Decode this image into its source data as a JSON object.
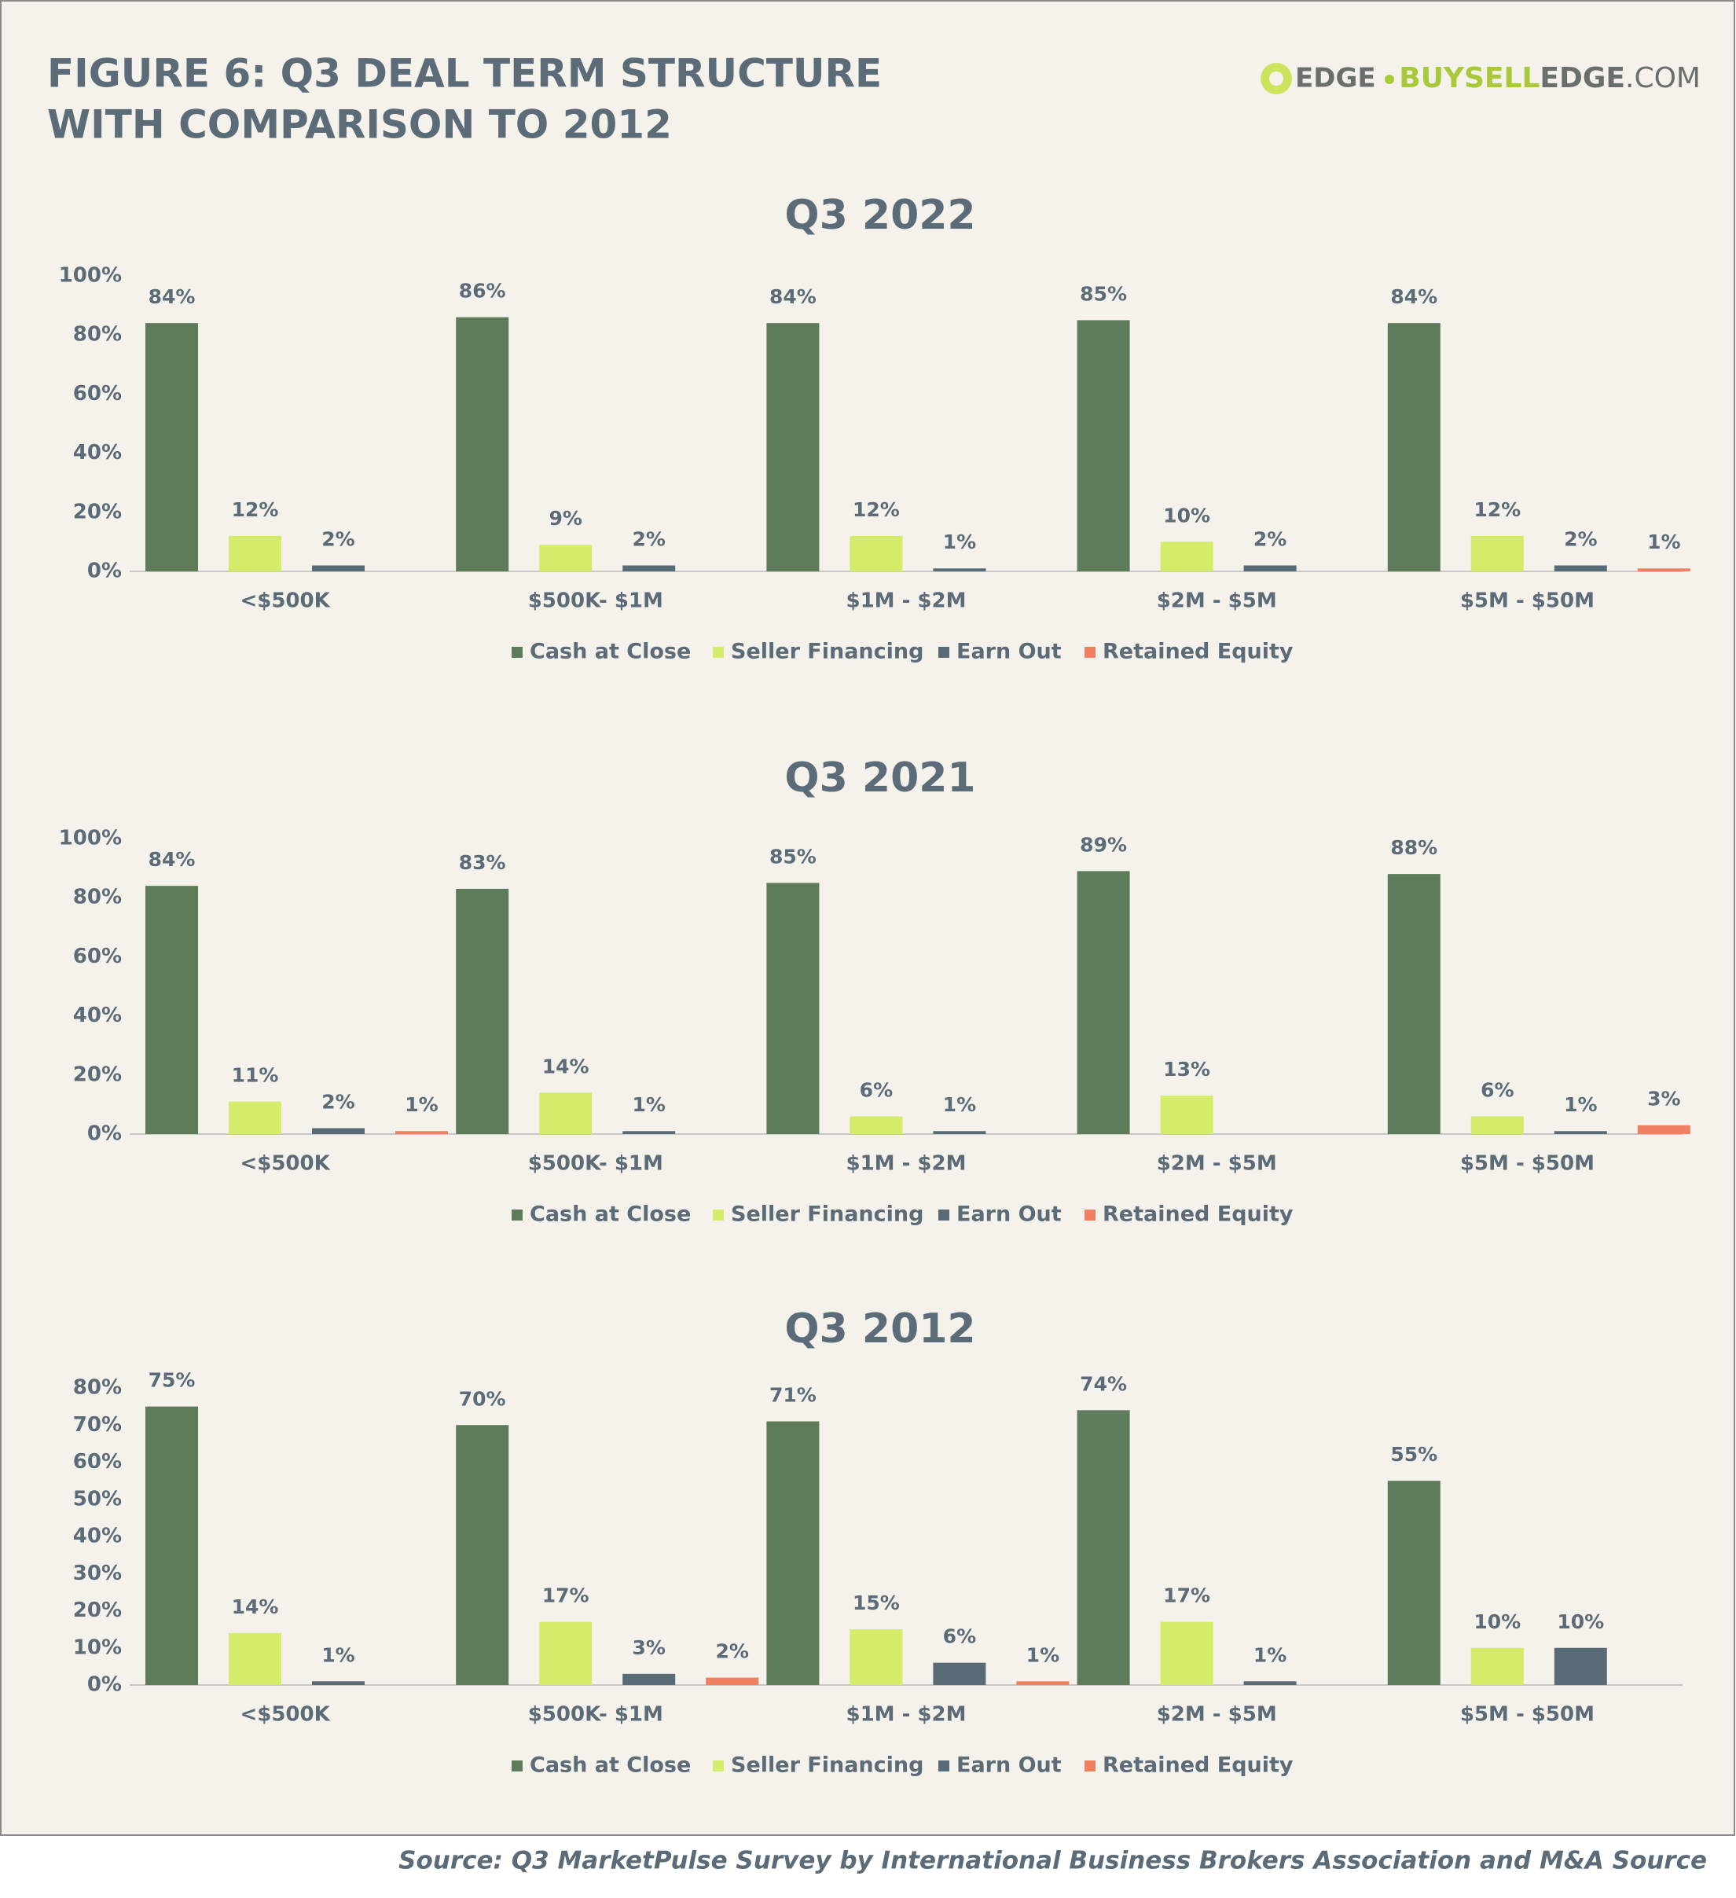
{
  "header": {
    "title_lines": [
      "FIGURE 6: Q3 DEAL TERM STRUCTURE",
      "WITH COMPARISON TO 2012"
    ],
    "logo": "EDGE",
    "site_parts": [
      "BUYSELL",
      "EDGE",
      ".COM"
    ]
  },
  "source": "Source: Q3 MarketPulse Survey by International Business Brokers Association and M&A Source",
  "chart_data": [
    {
      "type": "bar",
      "title": "Q3 2022",
      "categories": [
        "<$500K",
        "$500K- $1M",
        "$1M - $2M",
        "$2M - $5M",
        "$5M - $50M"
      ],
      "ylim": [
        0,
        100
      ],
      "yticks": [
        {
          "value": 0,
          "label": "0%"
        },
        {
          "value": 20,
          "label": "20%"
        },
        {
          "value": 40,
          "label": "40%"
        },
        {
          "value": 60,
          "label": "60%"
        },
        {
          "value": 80,
          "label": "80%"
        },
        {
          "value": 100,
          "label": "100%"
        }
      ],
      "grid": false,
      "legend": "bottom",
      "series": [
        {
          "name": "Cash at Close",
          "color": "#5e7b5a",
          "values": [
            84,
            86,
            84,
            85,
            84
          ],
          "value_labels": [
            "84%",
            "86%",
            "84%",
            "85%",
            "84%"
          ]
        },
        {
          "name": "Seller Financing",
          "color": "#d4ec6a",
          "values": [
            12,
            9,
            12,
            10,
            12
          ],
          "value_labels": [
            "12%",
            "9%",
            "12%",
            "10%",
            "12%"
          ]
        },
        {
          "name": "Earn Out",
          "color": "#5a6b78",
          "values": [
            2,
            2,
            1,
            2,
            2
          ],
          "value_labels": [
            "2%",
            "2%",
            "1%",
            "2%",
            "2%"
          ]
        },
        {
          "name": "Retained Equity",
          "color": "#f08060",
          "values": [
            null,
            null,
            null,
            null,
            1
          ],
          "value_labels": [
            null,
            null,
            null,
            null,
            "1%"
          ]
        }
      ]
    },
    {
      "type": "bar",
      "title": "Q3 2021",
      "categories": [
        "<$500K",
        "$500K- $1M",
        "$1M - $2M",
        "$2M - $5M",
        "$5M - $50M"
      ],
      "ylim": [
        0,
        100
      ],
      "yticks": [
        {
          "value": 0,
          "label": "0%"
        },
        {
          "value": 20,
          "label": "20%"
        },
        {
          "value": 40,
          "label": "40%"
        },
        {
          "value": 60,
          "label": "60%"
        },
        {
          "value": 80,
          "label": "80%"
        },
        {
          "value": 100,
          "label": "100%"
        }
      ],
      "grid": false,
      "legend": "bottom",
      "series": [
        {
          "name": "Cash at Close",
          "color": "#5e7b5a",
          "values": [
            84,
            83,
            85,
            89,
            88
          ],
          "value_labels": [
            "84%",
            "83%",
            "85%",
            "89%",
            "88%"
          ]
        },
        {
          "name": "Seller Financing",
          "color": "#d4ec6a",
          "values": [
            11,
            14,
            6,
            13,
            6
          ],
          "value_labels": [
            "11%",
            "14%",
            "6%",
            "13%",
            "6%"
          ]
        },
        {
          "name": "Earn Out",
          "color": "#5a6b78",
          "values": [
            2,
            1,
            1,
            null,
            1
          ],
          "value_labels": [
            "2%",
            "1%",
            "1%",
            null,
            "1%"
          ]
        },
        {
          "name": "Retained Equity",
          "color": "#f08060",
          "values": [
            1,
            null,
            null,
            null,
            3
          ],
          "value_labels": [
            "1%",
            null,
            null,
            null,
            "3%"
          ]
        }
      ]
    },
    {
      "type": "bar",
      "title": "Q3 2012",
      "categories": [
        "<$500K",
        "$500K- $1M",
        "$1M - $2M",
        "$2M - $5M",
        "$5M - $50M"
      ],
      "ylim": [
        0,
        80
      ],
      "yticks": [
        {
          "value": 0,
          "label": "0%"
        },
        {
          "value": 10,
          "label": "10%"
        },
        {
          "value": 20,
          "label": "20%"
        },
        {
          "value": 30,
          "label": "30%"
        },
        {
          "value": 40,
          "label": "40%"
        },
        {
          "value": 50,
          "label": "50%"
        },
        {
          "value": 60,
          "label": "60%"
        },
        {
          "value": 70,
          "label": "70%"
        },
        {
          "value": 80,
          "label": "80%"
        }
      ],
      "grid": false,
      "legend": "bottom",
      "series": [
        {
          "name": "Cash at Close",
          "color": "#5e7b5a",
          "values": [
            75,
            70,
            71,
            74,
            55
          ],
          "value_labels": [
            "75%",
            "70%",
            "71%",
            "74%",
            "55%"
          ]
        },
        {
          "name": "Seller Financing",
          "color": "#d4ec6a",
          "values": [
            14,
            17,
            15,
            17,
            10
          ],
          "value_labels": [
            "14%",
            "17%",
            "15%",
            "17%",
            "10%"
          ]
        },
        {
          "name": "Earn Out",
          "color": "#5a6b78",
          "values": [
            1,
            3,
            6,
            1,
            10
          ],
          "value_labels": [
            "1%",
            "3%",
            "6%",
            "1%",
            "10%"
          ]
        },
        {
          "name": "Retained Equity",
          "color": "#f08060",
          "values": [
            null,
            2,
            1,
            null,
            null
          ],
          "value_labels": [
            null,
            "2%",
            "1%",
            null,
            null
          ]
        }
      ]
    }
  ]
}
